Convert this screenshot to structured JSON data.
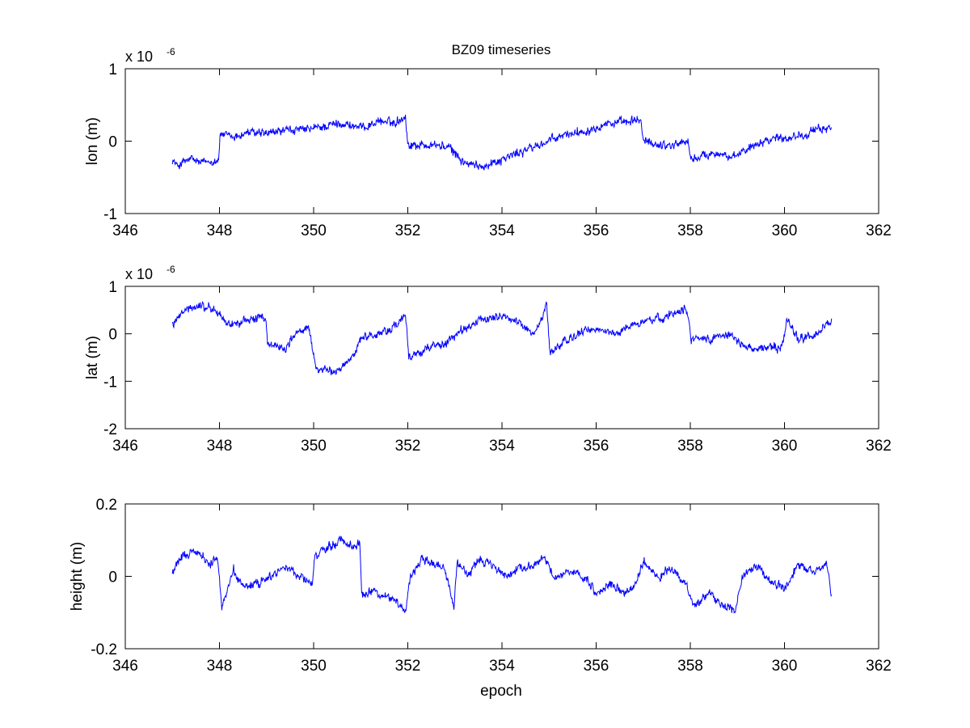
{
  "figure": {
    "title": "BZ09 timeseries",
    "xlabel": "epoch"
  },
  "colors": {
    "line": "#0000ff",
    "axes": "#000000",
    "background": "#ffffff"
  },
  "chart_data": [
    {
      "type": "line",
      "ylabel": "lon (m)",
      "exponent_label": "x 10",
      "exponent": "-6",
      "xlim": [
        346,
        362
      ],
      "ylim": [
        -1,
        1
      ],
      "x_ticks": [
        346,
        348,
        350,
        352,
        354,
        356,
        358,
        360,
        362
      ],
      "y_ticks": [
        -1,
        0,
        1
      ],
      "y_tick_labels": [
        "-1",
        "0",
        "1"
      ],
      "grid": false,
      "series": [
        {
          "x": [
            347.0,
            347.1,
            347.2,
            347.4,
            347.6,
            347.8,
            347.98,
            348.02,
            348.3,
            348.6,
            349.0,
            349.4,
            349.8,
            350.2,
            350.6,
            351.0,
            351.4,
            351.7,
            351.95,
            352.0,
            352.3,
            352.6,
            352.9,
            353.2,
            353.5,
            353.8,
            354.2,
            354.6,
            355.0,
            355.4,
            355.8,
            356.2,
            356.6,
            356.95,
            357.0,
            357.3,
            357.6,
            357.95,
            358.0,
            358.3,
            358.6,
            358.9,
            359.2,
            359.5,
            359.8,
            360.1,
            360.4,
            360.7,
            361.0
          ],
          "y": [
            -0.25,
            -0.35,
            -0.3,
            -0.25,
            -0.3,
            -0.28,
            -0.25,
            0.1,
            0.05,
            0.12,
            0.1,
            0.15,
            0.15,
            0.2,
            0.25,
            0.18,
            0.28,
            0.25,
            0.35,
            -0.05,
            -0.05,
            -0.05,
            -0.1,
            -0.3,
            -0.35,
            -0.3,
            -0.2,
            -0.1,
            0.0,
            0.1,
            0.15,
            0.25,
            0.25,
            0.3,
            0.0,
            -0.05,
            -0.05,
            0.0,
            -0.25,
            -0.2,
            -0.15,
            -0.25,
            -0.1,
            0.0,
            0.05,
            0.05,
            0.1,
            0.15,
            0.2
          ]
        }
      ]
    },
    {
      "type": "line",
      "ylabel": "lat (m)",
      "exponent_label": "x 10",
      "exponent": "-6",
      "xlim": [
        346,
        362
      ],
      "ylim": [
        -2,
        1
      ],
      "x_ticks": [
        346,
        348,
        350,
        352,
        354,
        356,
        358,
        360,
        362
      ],
      "y_ticks": [
        -2,
        -1,
        0,
        1
      ],
      "y_tick_labels": [
        "-2",
        "-1",
        "0",
        "1"
      ],
      "grid": false,
      "series": [
        {
          "x": [
            347.0,
            347.3,
            347.6,
            347.9,
            348.2,
            348.5,
            348.8,
            348.98,
            349.02,
            349.4,
            349.6,
            349.9,
            350.05,
            350.3,
            350.5,
            350.8,
            351.0,
            351.4,
            351.8,
            351.95,
            352.02,
            352.4,
            352.8,
            353.2,
            353.6,
            354.0,
            354.4,
            354.7,
            354.95,
            355.02,
            355.3,
            355.6,
            356.0,
            356.4,
            356.8,
            357.2,
            357.6,
            357.9,
            358.02,
            358.4,
            358.8,
            359.2,
            359.6,
            359.95,
            360.05,
            360.3,
            360.7,
            361.0
          ],
          "y": [
            0.2,
            0.5,
            0.6,
            0.5,
            0.2,
            0.25,
            0.35,
            0.3,
            -0.2,
            -0.3,
            0.0,
            0.1,
            -0.7,
            -0.8,
            -0.8,
            -0.5,
            -0.1,
            0.0,
            0.2,
            0.4,
            -0.5,
            -0.3,
            -0.2,
            0.1,
            0.3,
            0.4,
            0.2,
            0.0,
            0.6,
            -0.4,
            -0.2,
            0.0,
            0.1,
            0.0,
            0.2,
            0.3,
            0.4,
            0.6,
            -0.1,
            -0.1,
            0.0,
            -0.3,
            -0.3,
            -0.3,
            0.3,
            -0.1,
            0.0,
            0.3
          ]
        }
      ]
    },
    {
      "type": "line",
      "ylabel": "height (m)",
      "xlim": [
        346,
        362
      ],
      "ylim": [
        -0.2,
        0.2
      ],
      "x_ticks": [
        346,
        348,
        350,
        352,
        354,
        356,
        358,
        360,
        362
      ],
      "y_ticks": [
        -0.2,
        0,
        0.2
      ],
      "y_tick_labels": [
        "-0.2",
        "0",
        "0.2"
      ],
      "grid": false,
      "series": [
        {
          "x": [
            347.0,
            347.2,
            347.5,
            347.8,
            347.95,
            348.05,
            348.3,
            348.5,
            348.8,
            349.1,
            349.4,
            349.7,
            349.98,
            350.02,
            350.3,
            350.6,
            350.9,
            350.98,
            351.02,
            351.3,
            351.6,
            351.95,
            352.05,
            352.3,
            352.5,
            352.8,
            352.98,
            353.05,
            353.3,
            353.5,
            353.8,
            354.05,
            354.3,
            354.6,
            354.9,
            355.1,
            355.4,
            355.6,
            355.8,
            356.0,
            356.3,
            356.6,
            356.8,
            357.0,
            357.3,
            357.6,
            357.9,
            358.05,
            358.4,
            358.7,
            358.95,
            359.1,
            359.4,
            359.7,
            360.0,
            360.3,
            360.6,
            360.9,
            361.0
          ],
          "y": [
            0.01,
            0.05,
            0.07,
            0.03,
            0.06,
            -0.09,
            0.02,
            -0.03,
            -0.02,
            0.0,
            0.03,
            0.0,
            -0.02,
            0.05,
            0.08,
            0.1,
            0.08,
            0.1,
            -0.05,
            -0.04,
            -0.06,
            -0.09,
            0.0,
            0.05,
            0.04,
            0.02,
            -0.09,
            0.04,
            0.0,
            0.05,
            0.03,
            0.0,
            0.02,
            0.03,
            0.05,
            0.0,
            0.01,
            0.0,
            -0.01,
            -0.05,
            -0.02,
            -0.05,
            -0.03,
            0.04,
            0.0,
            0.02,
            -0.02,
            -0.08,
            -0.05,
            -0.08,
            -0.1,
            0.0,
            0.03,
            -0.01,
            -0.04,
            0.03,
            0.01,
            0.03,
            -0.05
          ]
        }
      ]
    }
  ]
}
